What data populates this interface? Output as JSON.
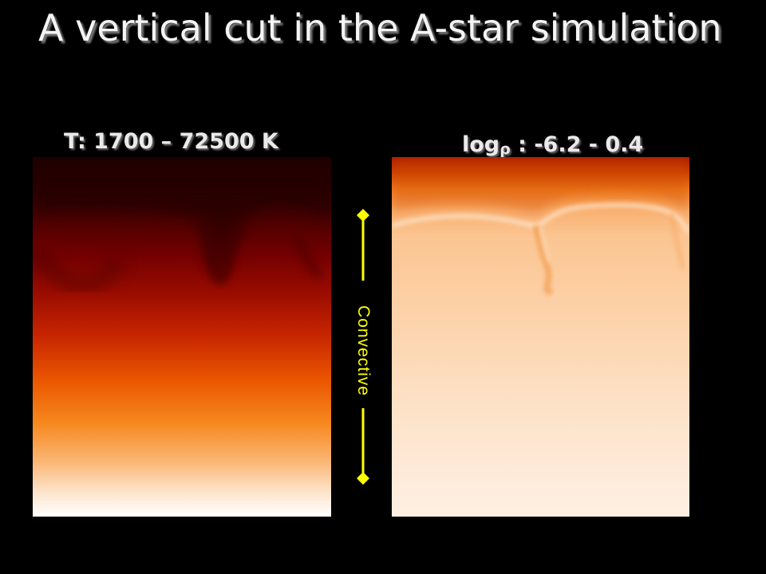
{
  "slide": {
    "title": "A vertical cut in the A-star simulation"
  },
  "temperature_panel": {
    "label": "T: 1700 – 72500 K"
  },
  "density_panel": {
    "label_prefix": "log",
    "label_symbol": "ρ",
    "label_suffix": " : -6.2 - 0.4"
  },
  "convective_zone": {
    "label": "Convective",
    "marker_color": "#ffff00"
  },
  "colors": {
    "background": "#000000",
    "hot_top": "#2a0000",
    "hot_mid": "#d43000",
    "hot_bottom": "#ffffff",
    "dense_top": "#c03800",
    "dense_mid": "#fbc79a",
    "dense_bottom": "#fdf1e6"
  }
}
